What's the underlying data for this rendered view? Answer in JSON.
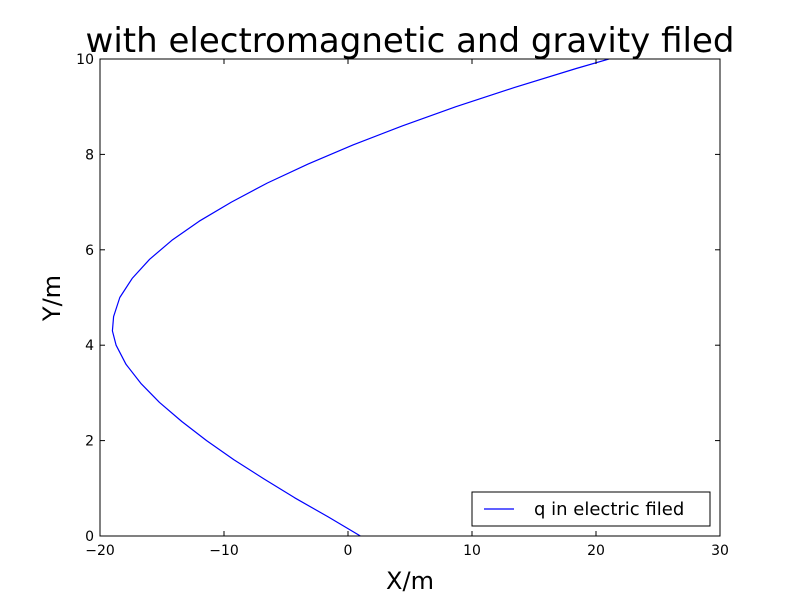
{
  "chart_data": {
    "type": "line",
    "title": "with electromagnetic and gravity filed",
    "xlabel": "X/m",
    "ylabel": "Y/m",
    "xlim": [
      -20,
      30
    ],
    "ylim": [
      0,
      10
    ],
    "xticks": [
      -20,
      -10,
      0,
      10,
      20,
      30
    ],
    "yticks": [
      0,
      2,
      4,
      6,
      8,
      10
    ],
    "xtick_labels": [
      "−20",
      "−10",
      "0",
      "10",
      "20",
      "30"
    ],
    "ytick_labels": [
      "0",
      "2",
      "4",
      "6",
      "8",
      "10"
    ],
    "grid": false,
    "legend_position": "lower right",
    "series": [
      {
        "name": "q in electric filed",
        "color": "#0000ff",
        "x": [
          1.0,
          -1.6,
          -4.3,
          -6.8,
          -9.2,
          -11.4,
          -13.4,
          -15.2,
          -16.7,
          -17.9,
          -18.7,
          -19.0,
          -18.9,
          -18.4,
          -17.4,
          -16.0,
          -14.2,
          -12.0,
          -9.4,
          -6.5,
          -3.2,
          0.4,
          4.4,
          8.7,
          13.4,
          18.4,
          23.7,
          26.1
        ],
        "y": [
          0.0,
          0.4,
          0.8,
          1.2,
          1.6,
          2.0,
          2.4,
          2.8,
          3.2,
          3.6,
          4.0,
          4.3,
          4.6,
          5.0,
          5.4,
          5.8,
          6.2,
          6.6,
          7.0,
          7.4,
          7.8,
          8.2,
          8.6,
          9.0,
          9.4,
          9.8,
          10.2,
          10.4
        ]
      }
    ]
  }
}
